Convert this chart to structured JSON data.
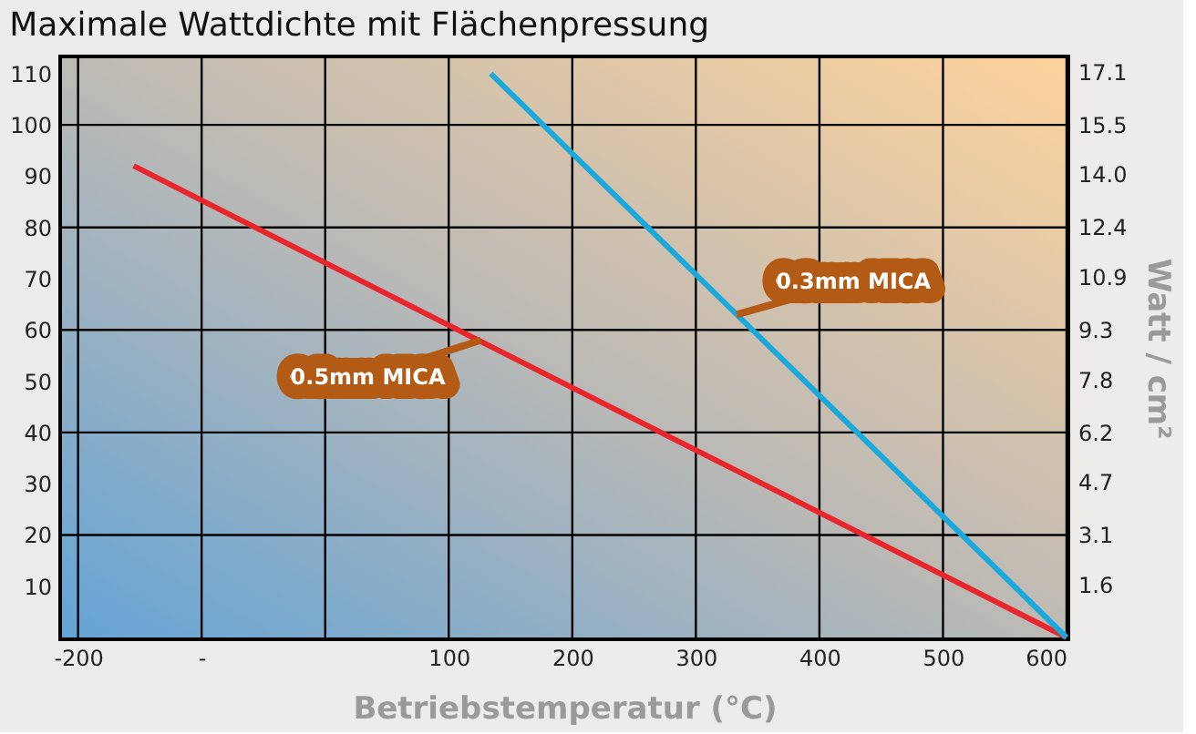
{
  "chart_data": {
    "type": "line",
    "title": "Maximale Wattdichte mit Flächenpressung",
    "xlabel": "Betriebstemperatur (°C)",
    "y2label": "Watt / cm²",
    "series": [
      {
        "color": "#e8262b",
        "x": [
          -155,
          600
        ],
        "values": [
          92,
          0
        ]
      },
      {
        "color": "#1aa9dc",
        "x": [
          134,
          600
        ],
        "values": [
          110,
          0
        ]
      }
    ],
    "annotations": [
      {
        "text": "0.5mm MICA",
        "x": 126,
        "y": 58
      },
      {
        "text": "0.3mm MICA",
        "x": 333,
        "y": 63
      }
    ],
    "xlim": [
      -213,
      600
    ],
    "xticks": [
      -200,
      {
        "value": -100,
        "label": "-"
      },
      {
        "value": 0,
        "label": null
      },
      100,
      200,
      300,
      400,
      500,
      600
    ],
    "ylim": [
      0,
      113
    ],
    "yticks": [
      10,
      20,
      30,
      40,
      50,
      60,
      70,
      80,
      90,
      100,
      110
    ],
    "y2lim": [
      0,
      17.5
    ],
    "y2ticks": [
      1.6,
      3.1,
      4.7,
      6.2,
      7.8,
      9.3,
      10.9,
      12.4,
      {
        "value": 14,
        "label": "14.0"
      },
      15.5,
      17.1
    ],
    "grid": true,
    "marker": "none",
    "line_style": "solid"
  }
}
